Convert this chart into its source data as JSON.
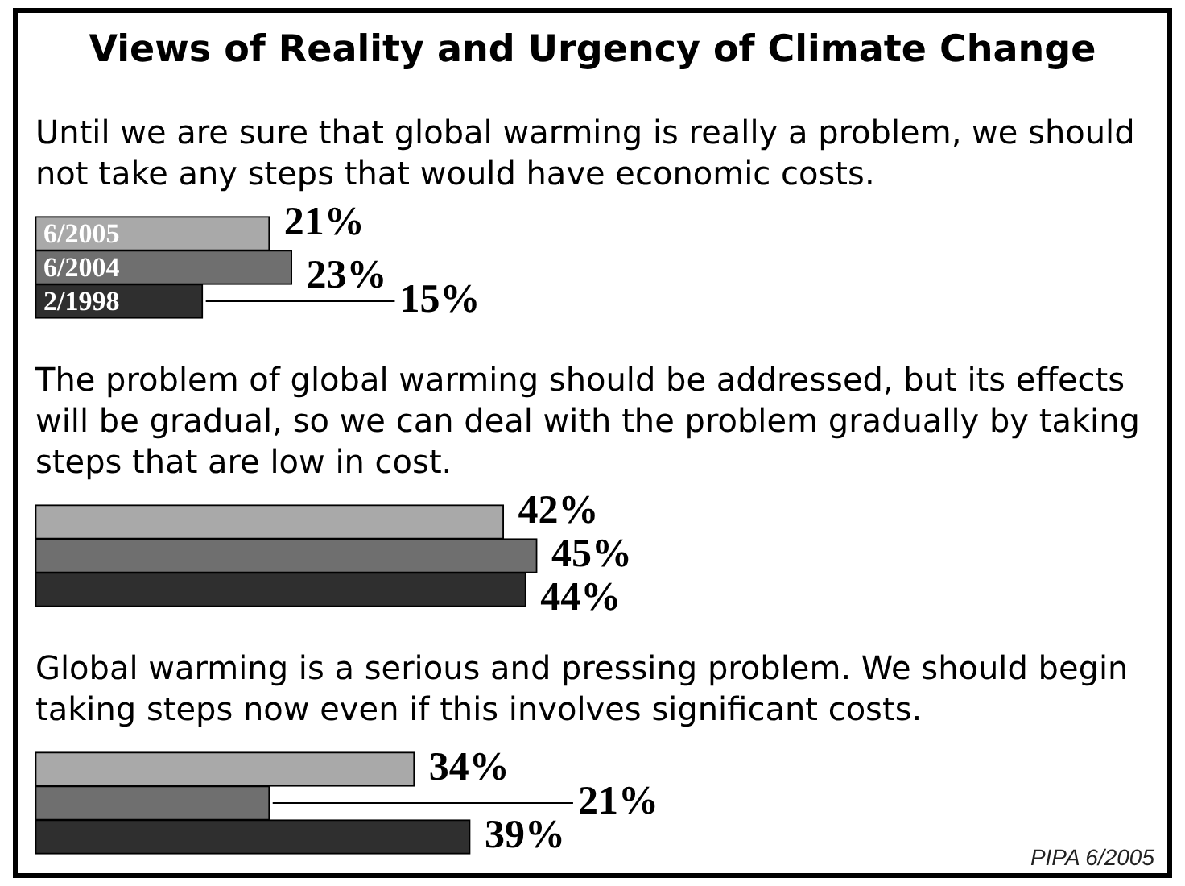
{
  "chart_data": {
    "type": "bar",
    "orientation": "horizontal",
    "title": "Views of Reality and Urgency of Climate Change",
    "categories": [
      "Until we are sure that global warming is really a problem, we should not take any steps that would have economic costs.",
      "The problem of global warming should be addressed, but its effects will be gradual, so we can deal with the problem gradually by taking steps that are low in cost.",
      "Global warming is a serious and pressing problem. We should begin taking steps now even if this involves significant costs."
    ],
    "series": [
      {
        "name": "6/2005",
        "color": "#a9a9a9",
        "values": [
          21,
          42,
          34
        ],
        "value_labels": [
          "21%",
          "42%",
          "34%"
        ]
      },
      {
        "name": "6/2004",
        "color": "#6f6f6f",
        "values": [
          23,
          45,
          21
        ],
        "value_labels": [
          "23%",
          "45%",
          "21%"
        ]
      },
      {
        "name": "2/1998",
        "color": "#2f2f2f",
        "values": [
          15,
          44,
          39
        ],
        "value_labels": [
          "15%",
          "44%",
          "39%"
        ]
      }
    ],
    "tick_labels": "y",
    "annotations": [
      "PIPA 6/2005"
    ]
  }
}
